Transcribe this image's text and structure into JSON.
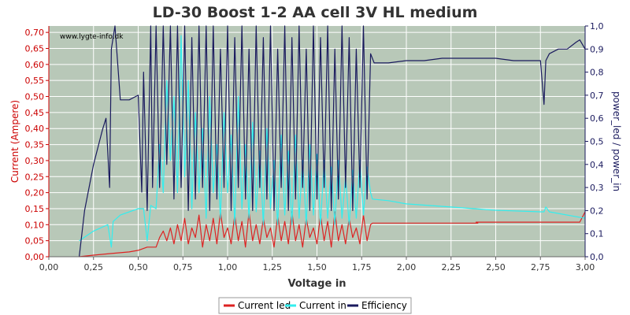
{
  "chart_data": {
    "type": "line",
    "title": "LD-30 Boost 1-2 AA cell 3V HL medium",
    "watermark": "www.lygte-info.dk",
    "xlabel": "Voltage in",
    "ylabel_left": "Current (Ampere)",
    "ylabel_right": "power_led / power_in",
    "xlim": [
      0,
      3.0
    ],
    "ylim_left": [
      0,
      0.72
    ],
    "ylim_right": [
      0,
      1.0
    ],
    "x_ticks": [
      "0,00",
      "0,25",
      "0,50",
      "0,75",
      "1,00",
      "1,25",
      "1,50",
      "1,75",
      "2,00",
      "2,25",
      "2,50",
      "2,75",
      "3,00"
    ],
    "y_ticks_left": [
      "0,00",
      "0,05",
      "0,10",
      "0,15",
      "0,20",
      "0,25",
      "0,30",
      "0,35",
      "0,40",
      "0,45",
      "0,50",
      "0,55",
      "0,60",
      "0,65",
      "0,70"
    ],
    "y_ticks_right": [
      "0,0",
      "0,1",
      "0,2",
      "0,3",
      "0,4",
      "0,5",
      "0,6",
      "0,7",
      "0,8",
      "0,9",
      "1,0"
    ],
    "grid": true,
    "legend_position": "bottom-center",
    "colors": {
      "plot_bg": "#b8c8b8",
      "grid": "#ffffff",
      "left_axis": "#cc0000",
      "right_axis": "#1a1a5e",
      "current_led": "#dd2222",
      "current_in": "#33eeee",
      "efficiency": "#1a1a5e"
    },
    "series": [
      {
        "name": "Current led",
        "axis": "left",
        "x": [
          0.17,
          0.25,
          0.35,
          0.45,
          0.5,
          0.55,
          0.6,
          0.62,
          0.64,
          0.66,
          0.68,
          0.7,
          0.72,
          0.74,
          0.76,
          0.78,
          0.8,
          0.82,
          0.84,
          0.86,
          0.88,
          0.9,
          0.92,
          0.94,
          0.96,
          0.98,
          1.0,
          1.02,
          1.04,
          1.06,
          1.08,
          1.1,
          1.12,
          1.14,
          1.16,
          1.18,
          1.2,
          1.22,
          1.24,
          1.26,
          1.28,
          1.3,
          1.32,
          1.34,
          1.36,
          1.38,
          1.4,
          1.42,
          1.44,
          1.46,
          1.48,
          1.5,
          1.52,
          1.54,
          1.56,
          1.58,
          1.6,
          1.62,
          1.64,
          1.66,
          1.68,
          1.7,
          1.72,
          1.74,
          1.76,
          1.78,
          1.8,
          1.81,
          2.0,
          2.4,
          2.39,
          2.5,
          2.75,
          2.97,
          3.0
        ],
        "values": [
          0.0,
          0.005,
          0.01,
          0.015,
          0.02,
          0.03,
          0.03,
          0.06,
          0.08,
          0.05,
          0.09,
          0.04,
          0.1,
          0.05,
          0.12,
          0.04,
          0.09,
          0.06,
          0.13,
          0.03,
          0.1,
          0.05,
          0.12,
          0.04,
          0.14,
          0.06,
          0.09,
          0.04,
          0.13,
          0.05,
          0.11,
          0.03,
          0.14,
          0.05,
          0.1,
          0.04,
          0.12,
          0.06,
          0.09,
          0.03,
          0.13,
          0.05,
          0.11,
          0.04,
          0.14,
          0.05,
          0.1,
          0.03,
          0.12,
          0.06,
          0.09,
          0.04,
          0.13,
          0.05,
          0.11,
          0.03,
          0.14,
          0.05,
          0.1,
          0.04,
          0.12,
          0.06,
          0.09,
          0.04,
          0.13,
          0.05,
          0.1,
          0.105,
          0.105,
          0.105,
          0.108,
          0.108,
          0.108,
          0.108,
          0.14
        ]
      },
      {
        "name": "Current in",
        "axis": "left",
        "x": [
          0.17,
          0.25,
          0.33,
          0.35,
          0.36,
          0.4,
          0.5,
          0.53,
          0.55,
          0.57,
          0.6,
          0.62,
          0.64,
          0.66,
          0.68,
          0.7,
          0.72,
          0.74,
          0.76,
          0.78,
          0.8,
          0.82,
          0.84,
          0.86,
          0.88,
          0.9,
          0.92,
          0.94,
          0.96,
          0.98,
          1.0,
          1.02,
          1.04,
          1.06,
          1.08,
          1.1,
          1.12,
          1.14,
          1.16,
          1.18,
          1.2,
          1.22,
          1.24,
          1.26,
          1.28,
          1.3,
          1.32,
          1.34,
          1.36,
          1.38,
          1.4,
          1.42,
          1.44,
          1.46,
          1.48,
          1.5,
          1.52,
          1.54,
          1.56,
          1.58,
          1.6,
          1.62,
          1.64,
          1.66,
          1.68,
          1.7,
          1.72,
          1.74,
          1.76,
          1.78,
          1.8,
          1.81,
          1.9,
          2.0,
          2.25,
          2.5,
          2.75,
          2.77,
          2.78,
          2.8,
          3.0
        ],
        "values": [
          0.05,
          0.08,
          0.1,
          0.03,
          0.11,
          0.13,
          0.15,
          0.15,
          0.05,
          0.16,
          0.15,
          0.35,
          0.2,
          0.55,
          0.3,
          0.5,
          0.2,
          0.69,
          0.25,
          0.55,
          0.15,
          0.45,
          0.2,
          0.4,
          0.12,
          0.5,
          0.2,
          0.35,
          0.12,
          0.45,
          0.2,
          0.38,
          0.1,
          0.5,
          0.15,
          0.35,
          0.12,
          0.42,
          0.14,
          0.33,
          0.1,
          0.4,
          0.15,
          0.3,
          0.1,
          0.38,
          0.13,
          0.33,
          0.1,
          0.38,
          0.12,
          0.3,
          0.1,
          0.35,
          0.13,
          0.32,
          0.1,
          0.3,
          0.12,
          0.28,
          0.1,
          0.3,
          0.12,
          0.25,
          0.1,
          0.27,
          0.12,
          0.3,
          0.13,
          0.28,
          0.2,
          0.18,
          0.175,
          0.165,
          0.155,
          0.145,
          0.14,
          0.14,
          0.155,
          0.14,
          0.12
        ]
      },
      {
        "name": "Efficiency",
        "axis": "right",
        "x": [
          0.17,
          0.2,
          0.25,
          0.3,
          0.32,
          0.34,
          0.35,
          0.37,
          0.4,
          0.45,
          0.5,
          0.52,
          0.53,
          0.55,
          0.57,
          0.58,
          0.6,
          0.62,
          0.64,
          0.66,
          0.68,
          0.7,
          0.72,
          0.74,
          0.76,
          0.78,
          0.8,
          0.82,
          0.84,
          0.86,
          0.88,
          0.9,
          0.92,
          0.94,
          0.96,
          0.98,
          1.0,
          1.02,
          1.04,
          1.06,
          1.08,
          1.1,
          1.12,
          1.14,
          1.16,
          1.18,
          1.2,
          1.22,
          1.24,
          1.26,
          1.28,
          1.3,
          1.32,
          1.34,
          1.36,
          1.38,
          1.4,
          1.42,
          1.44,
          1.46,
          1.48,
          1.5,
          1.52,
          1.54,
          1.56,
          1.58,
          1.6,
          1.62,
          1.64,
          1.66,
          1.68,
          1.7,
          1.72,
          1.74,
          1.76,
          1.78,
          1.8,
          1.82,
          1.9,
          2.0,
          2.1,
          2.2,
          2.3,
          2.4,
          2.5,
          2.6,
          2.7,
          2.75,
          2.77,
          2.78,
          2.8,
          2.85,
          2.9,
          2.95,
          2.97,
          3.0
        ],
        "values": [
          0.0,
          0.2,
          0.4,
          0.55,
          0.6,
          0.3,
          0.9,
          1.0,
          0.68,
          0.68,
          0.7,
          0.28,
          0.8,
          0.2,
          1.0,
          0.3,
          1.0,
          0.3,
          1.0,
          0.4,
          1.0,
          0.25,
          1.0,
          0.3,
          1.0,
          0.2,
          0.95,
          0.25,
          1.0,
          0.3,
          1.0,
          0.2,
          1.0,
          0.25,
          0.9,
          0.3,
          1.0,
          0.2,
          0.95,
          0.3,
          1.0,
          0.25,
          0.9,
          0.2,
          1.0,
          0.3,
          0.95,
          0.25,
          1.0,
          0.2,
          0.9,
          0.3,
          1.0,
          0.2,
          0.95,
          0.25,
          1.0,
          0.3,
          0.9,
          0.2,
          1.0,
          0.25,
          0.95,
          0.3,
          1.0,
          0.2,
          0.9,
          0.25,
          1.0,
          0.3,
          0.95,
          0.2,
          0.9,
          0.3,
          1.0,
          0.25,
          0.88,
          0.84,
          0.84,
          0.85,
          0.85,
          0.86,
          0.86,
          0.86,
          0.86,
          0.85,
          0.85,
          0.85,
          0.66,
          0.85,
          0.88,
          0.9,
          0.9,
          0.93,
          0.94,
          0.9
        ]
      }
    ]
  }
}
